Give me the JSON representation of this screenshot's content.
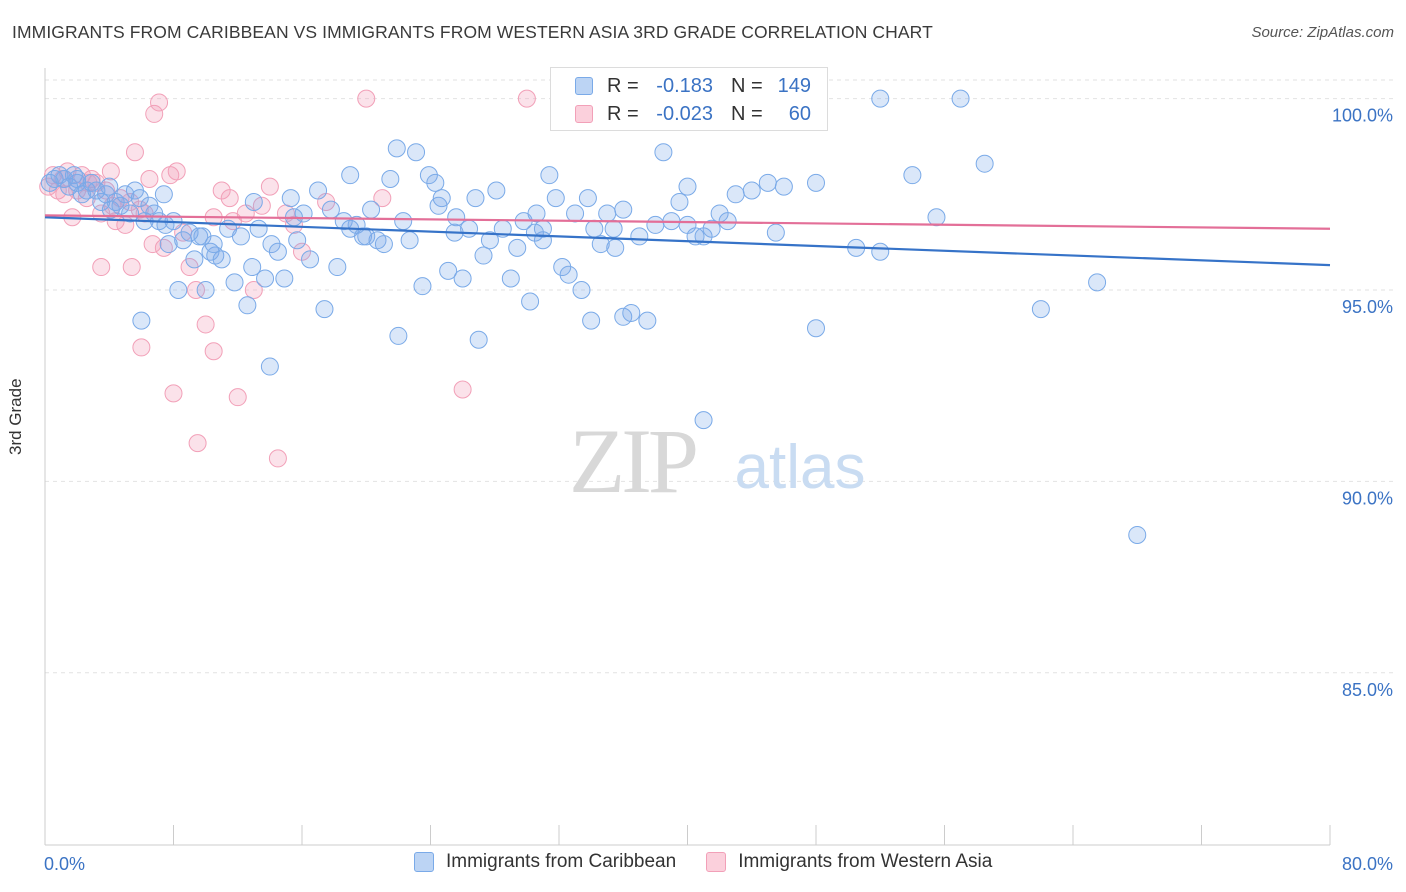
{
  "title": "IMMIGRANTS FROM CARIBBEAN VS IMMIGRANTS FROM WESTERN ASIA 3RD GRADE CORRELATION CHART",
  "source": "Source: ZipAtlas.com",
  "watermark": {
    "zip": "ZIP",
    "atlas": "atlas"
  },
  "colors": {
    "blue": "#7aaae8",
    "blue_line": "#3673c8",
    "pink": "#f2a0b8",
    "pink_line": "#e36f98",
    "axis_text": "#3b73c4"
  },
  "legend": {
    "rows": [
      {
        "r_label": "R =",
        "r_value": "-0.183",
        "n_label": "N =",
        "n_value": "149",
        "series": "blue"
      },
      {
        "r_label": "R =",
        "r_value": "-0.023",
        "n_label": "N =",
        "n_value": "60",
        "series": "pink"
      }
    ]
  },
  "bottom_legend": [
    "Immigrants from Caribbean",
    "Immigrants from Western Asia"
  ],
  "chart_data": {
    "type": "scatter",
    "title": "IMMIGRANTS FROM CARIBBEAN VS IMMIGRANTS FROM WESTERN ASIA 3RD GRADE CORRELATION CHART",
    "xlabel": "",
    "ylabel": "3rd Grade",
    "xlim": [
      0,
      80
    ],
    "ylim": [
      80.5,
      100.8
    ],
    "x_tick_labels": [
      "0.0%",
      "80.0%"
    ],
    "y_ticks": [
      85,
      90,
      95,
      100
    ],
    "y_tick_labels": [
      "85.0%",
      "90.0%",
      "95.0%",
      "100.0%"
    ],
    "grid": true,
    "legend_placement": "top-center",
    "series": [
      {
        "name": "Immigrants from Caribbean",
        "color": "#7aaae8",
        "trend": {
          "x": [
            0,
            80
          ],
          "y": [
            96.9,
            95.65
          ]
        },
        "points": [
          [
            0.3,
            97.8
          ],
          [
            0.6,
            97.9
          ],
          [
            0.9,
            98.0
          ],
          [
            1.2,
            97.9
          ],
          [
            1.5,
            97.7
          ],
          [
            1.8,
            98.0
          ],
          [
            2.0,
            97.8
          ],
          [
            2.3,
            97.5
          ],
          [
            2.6,
            97.6
          ],
          [
            2.9,
            97.8
          ],
          [
            3.2,
            97.6
          ],
          [
            3.5,
            97.3
          ],
          [
            3.8,
            97.5
          ],
          [
            4.1,
            97.1
          ],
          [
            4.4,
            97.3
          ],
          [
            4.7,
            97.2
          ],
          [
            5.0,
            97.5
          ],
          [
            5.3,
            97.0
          ],
          [
            5.6,
            97.6
          ],
          [
            5.9,
            97.4
          ],
          [
            6.2,
            96.8
          ],
          [
            6.5,
            97.2
          ],
          [
            6.8,
            97.0
          ],
          [
            7.1,
            96.8
          ],
          [
            7.4,
            97.5
          ],
          [
            7.7,
            96.2
          ],
          [
            8.0,
            96.8
          ],
          [
            8.3,
            95.0
          ],
          [
            8.6,
            96.3
          ],
          [
            9.0,
            96.5
          ],
          [
            9.3,
            95.8
          ],
          [
            9.6,
            96.4
          ],
          [
            10.0,
            95.0
          ],
          [
            10.3,
            96.0
          ],
          [
            10.6,
            95.9
          ],
          [
            11.0,
            95.8
          ],
          [
            11.4,
            96.6
          ],
          [
            11.8,
            95.2
          ],
          [
            12.2,
            96.4
          ],
          [
            12.6,
            94.6
          ],
          [
            12.9,
            95.6
          ],
          [
            13.3,
            96.6
          ],
          [
            13.7,
            95.3
          ],
          [
            14.1,
            96.2
          ],
          [
            14.5,
            96.0
          ],
          [
            14.9,
            95.3
          ],
          [
            15.3,
            97.4
          ],
          [
            15.7,
            96.3
          ],
          [
            16.1,
            97.0
          ],
          [
            16.5,
            95.8
          ],
          [
            17.0,
            97.6
          ],
          [
            17.4,
            94.5
          ],
          [
            17.8,
            97.1
          ],
          [
            18.2,
            95.6
          ],
          [
            18.6,
            96.8
          ],
          [
            19.0,
            96.6
          ],
          [
            19.4,
            96.7
          ],
          [
            19.8,
            96.4
          ],
          [
            20.3,
            97.1
          ],
          [
            20.7,
            96.3
          ],
          [
            21.1,
            96.2
          ],
          [
            21.5,
            97.9
          ],
          [
            21.9,
            98.7
          ],
          [
            22.3,
            96.8
          ],
          [
            22.7,
            96.3
          ],
          [
            23.1,
            98.6
          ],
          [
            23.5,
            95.1
          ],
          [
            23.9,
            98.0
          ],
          [
            24.3,
            97.8
          ],
          [
            24.7,
            97.4
          ],
          [
            25.1,
            95.5
          ],
          [
            25.6,
            96.9
          ],
          [
            26.0,
            95.3
          ],
          [
            26.4,
            96.6
          ],
          [
            26.8,
            97.4
          ],
          [
            27.3,
            95.9
          ],
          [
            27.7,
            96.3
          ],
          [
            28.1,
            97.6
          ],
          [
            28.5,
            96.6
          ],
          [
            29.0,
            95.3
          ],
          [
            29.4,
            96.1
          ],
          [
            29.8,
            96.8
          ],
          [
            30.2,
            94.7
          ],
          [
            30.6,
            97.0
          ],
          [
            31.0,
            96.6
          ],
          [
            31.4,
            98.0
          ],
          [
            31.8,
            97.4
          ],
          [
            32.2,
            95.6
          ],
          [
            32.6,
            95.4
          ],
          [
            33.0,
            97.0
          ],
          [
            33.4,
            95.0
          ],
          [
            33.8,
            97.4
          ],
          [
            34.2,
            96.6
          ],
          [
            34.6,
            96.2
          ],
          [
            35.0,
            97.0
          ],
          [
            35.4,
            96.6
          ],
          [
            36.0,
            94.3
          ],
          [
            36.5,
            94.4
          ],
          [
            37.0,
            96.4
          ],
          [
            37.5,
            94.2
          ],
          [
            38.0,
            96.7
          ],
          [
            38.5,
            98.6
          ],
          [
            39.0,
            96.8
          ],
          [
            39.5,
            97.3
          ],
          [
            40.0,
            97.7
          ],
          [
            40.5,
            96.4
          ],
          [
            41.0,
            96.4
          ],
          [
            41.5,
            96.6
          ],
          [
            42.0,
            97.0
          ],
          [
            42.5,
            96.8
          ],
          [
            43.0,
            97.5
          ],
          [
            44.0,
            97.6
          ],
          [
            45.0,
            97.8
          ],
          [
            46.0,
            97.7
          ],
          [
            48.0,
            97.8
          ],
          [
            50.5,
            96.1
          ],
          [
            52.0,
            96.0
          ],
          [
            54.0,
            98.0
          ],
          [
            55.5,
            96.9
          ],
          [
            58.5,
            98.3
          ],
          [
            62.0,
            94.5
          ],
          [
            65.5,
            95.2
          ],
          [
            68.0,
            88.6
          ],
          [
            52.0,
            100.0
          ],
          [
            57.0,
            100.0
          ],
          [
            10.5,
            96.2
          ],
          [
            6.0,
            94.2
          ],
          [
            14.0,
            93.0
          ],
          [
            22.0,
            93.8
          ],
          [
            27.0,
            93.7
          ],
          [
            34.0,
            94.2
          ],
          [
            41.0,
            91.6
          ],
          [
            48.0,
            94.0
          ],
          [
            13.0,
            97.3
          ],
          [
            19.0,
            98.0
          ],
          [
            24.5,
            97.2
          ],
          [
            31.0,
            96.3
          ],
          [
            36.0,
            97.1
          ],
          [
            2.0,
            97.9
          ],
          [
            4.0,
            97.7
          ],
          [
            7.5,
            96.7
          ],
          [
            9.8,
            96.4
          ],
          [
            15.5,
            96.9
          ],
          [
            20.0,
            96.4
          ],
          [
            25.5,
            96.5
          ],
          [
            30.5,
            96.5
          ],
          [
            35.5,
            96.1
          ],
          [
            40.0,
            96.7
          ],
          [
            45.5,
            96.5
          ]
        ]
      },
      {
        "name": "Immigrants from Western Asia",
        "color": "#f2a0b8",
        "trend": {
          "x": [
            0,
            80
          ],
          "y": [
            96.95,
            96.6
          ]
        },
        "points": [
          [
            0.2,
            97.7
          ],
          [
            0.5,
            98.0
          ],
          [
            0.8,
            97.6
          ],
          [
            1.1,
            97.9
          ],
          [
            1.4,
            98.1
          ],
          [
            1.7,
            96.9
          ],
          [
            2.0,
            97.6
          ],
          [
            2.3,
            98.0
          ],
          [
            2.6,
            97.4
          ],
          [
            2.9,
            97.9
          ],
          [
            3.2,
            97.8
          ],
          [
            3.5,
            97.0
          ],
          [
            3.8,
            97.6
          ],
          [
            4.1,
            98.1
          ],
          [
            4.4,
            96.8
          ],
          [
            4.7,
            97.4
          ],
          [
            5.0,
            96.7
          ],
          [
            5.3,
            97.3
          ],
          [
            5.6,
            98.6
          ],
          [
            5.9,
            97.1
          ],
          [
            6.2,
            97.0
          ],
          [
            6.5,
            97.9
          ],
          [
            6.8,
            99.6
          ],
          [
            7.1,
            99.9
          ],
          [
            7.4,
            96.1
          ],
          [
            7.8,
            98.0
          ],
          [
            8.2,
            98.1
          ],
          [
            8.6,
            96.5
          ],
          [
            9.0,
            95.6
          ],
          [
            9.4,
            95.0
          ],
          [
            10.0,
            94.1
          ],
          [
            10.5,
            96.9
          ],
          [
            11.0,
            97.6
          ],
          [
            11.5,
            97.4
          ],
          [
            12.0,
            92.2
          ],
          [
            12.5,
            97.0
          ],
          [
            13.0,
            95.0
          ],
          [
            13.5,
            97.2
          ],
          [
            14.0,
            97.7
          ],
          [
            14.5,
            90.6
          ],
          [
            15.0,
            97.0
          ],
          [
            20.0,
            100.0
          ],
          [
            30.0,
            100.0
          ],
          [
            45.0,
            100.0
          ],
          [
            26.0,
            92.4
          ],
          [
            21.0,
            97.4
          ],
          [
            6.0,
            93.5
          ],
          [
            8.0,
            92.3
          ],
          [
            10.5,
            93.4
          ],
          [
            3.5,
            95.6
          ],
          [
            5.4,
            95.6
          ],
          [
            9.5,
            91.0
          ],
          [
            15.5,
            96.7
          ],
          [
            16.0,
            96.0
          ],
          [
            1.2,
            97.5
          ],
          [
            2.7,
            97.8
          ],
          [
            4.2,
            97.2
          ],
          [
            6.7,
            96.2
          ],
          [
            11.7,
            96.8
          ],
          [
            17.5,
            97.3
          ]
        ]
      }
    ]
  }
}
